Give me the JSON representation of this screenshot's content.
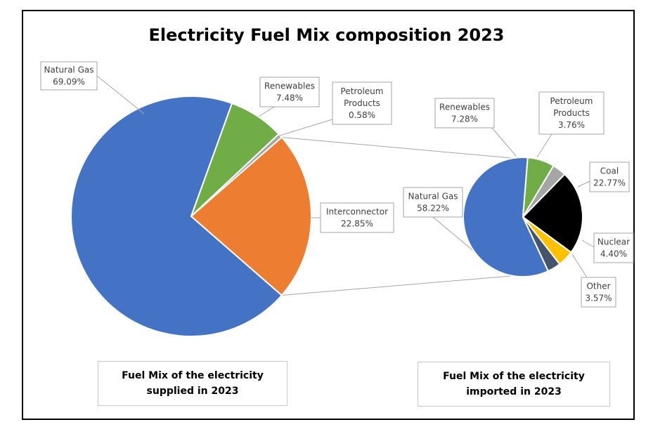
{
  "title": "Electricity Fuel Mix composition 2023",
  "captions": {
    "supplied": "Fuel Mix of the electricity supplied in 2023",
    "imported": "Fuel Mix of the electricity imported in 2023"
  },
  "chart_data": [
    {
      "type": "pie",
      "name": "Fuel Mix of the electricity supplied in 2023",
      "slices": [
        {
          "label": "Natural Gas",
          "value": 69.09,
          "display": "69.09%",
          "color": "#4472C4"
        },
        {
          "label": "Renewables",
          "value": 7.48,
          "display": "7.48%",
          "color": "#70AD47"
        },
        {
          "label": "Petroleum Products",
          "value": 0.58,
          "display": "0.58%",
          "color": "#A5A5A5"
        },
        {
          "label": "Interconnector",
          "value": 22.85,
          "display": "22.85%",
          "color": "#ED7D31"
        }
      ]
    },
    {
      "type": "pie",
      "name": "Fuel Mix of the electricity imported in 2023",
      "slices": [
        {
          "label": "Natural Gas",
          "value": 58.22,
          "display": "58.22%",
          "color": "#4472C4"
        },
        {
          "label": "Renewables",
          "value": 7.28,
          "display": "7.28%",
          "color": "#70AD47"
        },
        {
          "label": "Petroleum Products",
          "value": 3.76,
          "display": "3.76%",
          "color": "#A5A5A5"
        },
        {
          "label": "Coal",
          "value": 22.77,
          "display": "22.77%",
          "color": "#000000"
        },
        {
          "label": "Nuclear",
          "value": 4.4,
          "display": "4.40%",
          "color": "#FFC000"
        },
        {
          "label": "Other",
          "value": 3.57,
          "display": "3.57%",
          "color": "#44546A"
        }
      ]
    }
  ]
}
